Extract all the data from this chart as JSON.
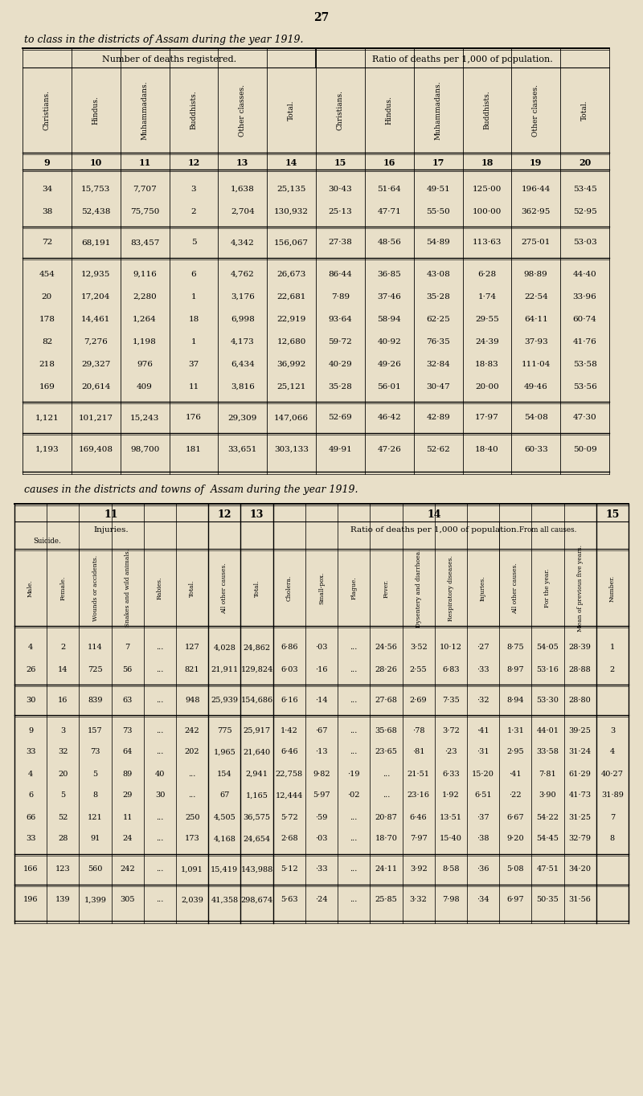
{
  "page_number": "27",
  "title1": "to class in the districts of Assam during the year 1919.",
  "title2": "causes in the districts and towns of  Assam during the year 1919.",
  "bg_color": "#e8dfc8",
  "table1": {
    "section_headers": [
      "Number of deaths registered.",
      "Ratio of deaths per 1,000 of population."
    ],
    "col_headers": [
      "Christians.",
      "Hindus.",
      "Muhammadans.",
      "Buddhists.",
      "Other classes.",
      "Total.",
      "Christians.",
      "Hindus.",
      "Muhammadans.",
      "Buddhists.",
      "Other classes.",
      "Total."
    ],
    "col_numbers": [
      "9",
      "10",
      "11",
      "12",
      "13",
      "14",
      "15",
      "16",
      "17",
      "18",
      "19",
      "20"
    ],
    "rows": [
      [
        "34",
        "15,753",
        "7,707",
        "3",
        "1,638",
        "25,135",
        "30·43",
        "51·64",
        "49·51",
        "125·00",
        "196·44",
        "53·45"
      ],
      [
        "38",
        "52,438",
        "75,750",
        "2",
        "2,704",
        "130,932",
        "25·13",
        "47·71",
        "55·50",
        "100·00",
        "362·95",
        "52·95"
      ],
      [
        "72",
        "68,191",
        "83,457",
        "5",
        "4,342",
        "156,067",
        "27·38",
        "48·56",
        "54·89",
        "113·63",
        "275·01",
        "53·03"
      ],
      [
        "454",
        "12,935",
        "9,116",
        "6",
        "4,762",
        "26,673",
        "86·44",
        "36·85",
        "43·08",
        "6·28",
        "98·89",
        "44·40"
      ],
      [
        "20",
        "17,204",
        "2,280",
        "1",
        "3,176",
        "22,681",
        "7·89",
        "37·46",
        "35·28",
        "1·74",
        "22·54",
        "33·96"
      ],
      [
        "178",
        "14,461",
        "1,264",
        "18",
        "6,998",
        "22,919",
        "93·64",
        "58·94",
        "62·25",
        "29·55",
        "64·11",
        "60·74"
      ],
      [
        "82",
        "7,276",
        "1,198",
        "1",
        "4,173",
        "12,680",
        "59·72",
        "40·92",
        "76·35",
        "24·39",
        "37·93",
        "41·76"
      ],
      [
        "218",
        "29,327",
        "976",
        "37",
        "6,434",
        "36,992",
        "40·29",
        "49·26",
        "32·84",
        "18·83",
        "111·04",
        "53·58"
      ],
      [
        "169",
        "20,614",
        "409",
        "11",
        "3,816",
        "25,121",
        "35·28",
        "56·01",
        "30·47",
        "20·00",
        "49·46",
        "53·56"
      ],
      [
        "1,121",
        "101,217",
        "15,243",
        "176",
        "29,309",
        "147,066",
        "52·69",
        "46·42",
        "42·89",
        "17·97",
        "54·08",
        "47·30"
      ],
      [
        "1,193",
        "169,408",
        "98,700",
        "181",
        "33,651",
        "303,133",
        "49·91",
        "47·26",
        "52·62",
        "18·40",
        "60·33",
        "50·09"
      ]
    ]
  },
  "table2": {
    "col_labels": [
      "Male.",
      "Female.",
      "Wounds or accidents.",
      "Snakes and wild animals.",
      "Rabies.",
      "Total.",
      "All other causes.",
      "Total.",
      "Cholera.",
      "Small-pox.",
      "Plague.",
      "Fever.",
      "Dysentery and diarrhoea.",
      "Respiratory diseases.",
      "Injuries.",
      "All other causes.",
      "For the year.",
      "Mean of previous five years.",
      "Number."
    ],
    "rows": [
      [
        "4",
        "2",
        "114",
        "7",
        "...",
        "127",
        "4,028",
        "24,862",
        "6·86",
        "·03",
        "...",
        "24·56",
        "3·52",
        "10·12",
        "·27",
        "8·75",
        "54·05",
        "28·39",
        "1"
      ],
      [
        "26",
        "14",
        "725",
        "56",
        "...",
        "821",
        "21,911",
        "129,824",
        "6·03",
        "·16",
        "...",
        "28·26",
        "2·55",
        "6·83",
        "·33",
        "8·97",
        "53·16",
        "28·88",
        "2"
      ],
      [
        "30",
        "16",
        "839",
        "63",
        "...",
        "948",
        "25,939",
        "154,686",
        "6·16",
        "·14",
        "...",
        "27·68",
        "2·69",
        "7·35",
        "·32",
        "8·94",
        "53·30",
        "28·80",
        ""
      ],
      [
        "9",
        "3",
        "157",
        "73",
        "...",
        "242",
        "775",
        "25,917",
        "1·42",
        "·67",
        "...",
        "35·68",
        "·78",
        "3·72",
        "·41",
        "1·31",
        "44·01",
        "39·25",
        "3"
      ],
      [
        "33",
        "32",
        "73",
        "64",
        "...",
        "202",
        "1,965",
        "21,640",
        "6·46",
        "·13",
        "...",
        "23·65",
        "·81",
        "·23",
        "·31",
        "2·95",
        "33·58",
        "31·24",
        "4"
      ],
      [
        "4",
        "20",
        "5",
        "89",
        "40",
        "...",
        "154",
        "2,941",
        "22,758",
        "9·82",
        "·19",
        "...",
        "21·51",
        "6·33",
        "15·20",
        "·41",
        "7·81",
        "61·29",
        "40·27"
      ],
      [
        "6",
        "5",
        "8",
        "29",
        "30",
        "...",
        "67",
        "1,165",
        "12,444",
        "5·97",
        "·02",
        "...",
        "23·16",
        "1·92",
        "6·51",
        "·22",
        "3·90",
        "41·73",
        "31·89"
      ],
      [
        "66",
        "52",
        "121",
        "11",
        "...",
        "250",
        "4,505",
        "36,575",
        "5·72",
        "·59",
        "...",
        "20·87",
        "6·46",
        "13·51",
        "·37",
        "6·67",
        "54·22",
        "31·25",
        "7"
      ],
      [
        "33",
        "28",
        "91",
        "24",
        "...",
        "173",
        "4,168",
        "24,654",
        "2·68",
        "·03",
        "...",
        "18·70",
        "7·97",
        "15·40",
        "·38",
        "9·20",
        "54·45",
        "32·79",
        "8"
      ],
      [
        "166",
        "123",
        "560",
        "242",
        "...",
        "1,091",
        "15,419",
        "143,988",
        "5·12",
        "·33",
        "...",
        "24·11",
        "3·92",
        "8·58",
        "·36",
        "5·08",
        "47·51",
        "34·20",
        ""
      ],
      [
        "196",
        "139",
        "1,399",
        "305",
        "...",
        "2,039",
        "41,358",
        "298,674",
        "5·63",
        "·24",
        "...",
        "25·85",
        "3·32",
        "7·98",
        "·34",
        "6·97",
        "50·35",
        "31·56",
        ""
      ]
    ]
  }
}
